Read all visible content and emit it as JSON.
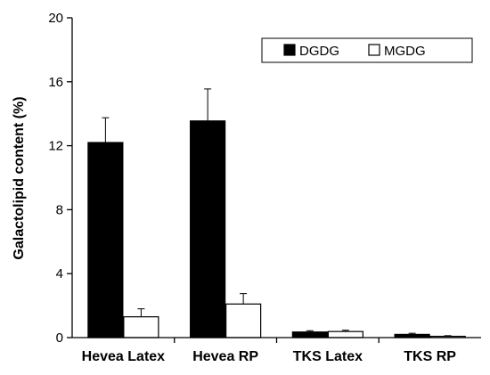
{
  "chart_data": {
    "type": "bar",
    "categories": [
      "Hevea Latex",
      "Hevea RP",
      "TKS Latex",
      "TKS RP"
    ],
    "series": [
      {
        "name": "DGDG",
        "values": [
          12.2,
          13.55,
          0.35,
          0.2
        ],
        "errors": [
          1.55,
          2.0,
          0.08,
          0.07
        ],
        "color": "#000000"
      },
      {
        "name": "MGDG",
        "values": [
          1.3,
          2.1,
          0.38,
          0.08
        ],
        "errors": [
          0.5,
          0.65,
          0.08,
          0.04
        ],
        "color": "#ffffff"
      }
    ],
    "ylabel": "Galactolipid  content (%)",
    "xlabel": "",
    "ylim": [
      0,
      20
    ],
    "yticks": [
      "0",
      "4",
      "8",
      "12",
      "16",
      "20"
    ],
    "grid": false,
    "legend_position": "top-right"
  }
}
